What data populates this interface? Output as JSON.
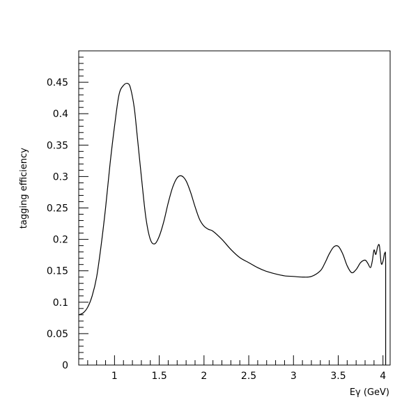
{
  "chart_data": {
    "type": "line",
    "title": "",
    "xlabel": "Eγ (GeV)",
    "ylabel": "tagging efficiency",
    "xlim": [
      0.6,
      4.08
    ],
    "ylim": [
      0,
      0.5
    ],
    "xticks": [
      1,
      1.5,
      2,
      2.5,
      3,
      3.5,
      4
    ],
    "xtick_labels": [
      "1",
      "1.5",
      "2",
      "2.5",
      "3",
      "3.5",
      "4"
    ],
    "yticks": [
      0,
      0.05,
      0.1,
      0.15,
      0.2,
      0.25,
      0.3,
      0.35,
      0.4,
      0.45
    ],
    "ytick_labels": [
      "0",
      "0.05",
      "0.1",
      "0.15",
      "0.2",
      "0.25",
      "0.3",
      "0.35",
      "0.4",
      "0.45"
    ],
    "grid": false,
    "legend": "none",
    "line_color": "#000000",
    "series": [
      {
        "x": [
          0.6,
          0.65,
          0.7,
          0.75,
          0.8,
          0.85,
          0.9,
          0.95,
          1.0,
          1.05,
          1.1,
          1.15,
          1.18,
          1.22,
          1.25,
          1.3,
          1.35,
          1.4,
          1.45,
          1.5,
          1.55,
          1.6,
          1.65,
          1.7,
          1.75,
          1.8,
          1.85,
          1.9,
          1.95,
          2.0,
          2.05,
          2.1,
          2.2,
          2.3,
          2.4,
          2.5,
          2.6,
          2.7,
          2.8,
          2.9,
          3.0,
          3.1,
          3.2,
          3.3,
          3.35,
          3.4,
          3.45,
          3.5,
          3.55,
          3.6,
          3.65,
          3.7,
          3.75,
          3.8,
          3.83,
          3.86,
          3.88,
          3.9,
          3.92,
          3.94,
          3.96,
          3.98,
          4.0,
          4.02,
          4.03,
          4.03
        ],
        "y": [
          0.08,
          0.083,
          0.092,
          0.11,
          0.14,
          0.19,
          0.25,
          0.32,
          0.38,
          0.43,
          0.445,
          0.448,
          0.44,
          0.41,
          0.37,
          0.3,
          0.235,
          0.2,
          0.193,
          0.205,
          0.228,
          0.258,
          0.283,
          0.298,
          0.301,
          0.293,
          0.275,
          0.252,
          0.232,
          0.221,
          0.216,
          0.213,
          0.2,
          0.184,
          0.171,
          0.163,
          0.155,
          0.149,
          0.145,
          0.142,
          0.141,
          0.14,
          0.141,
          0.15,
          0.162,
          0.177,
          0.188,
          0.189,
          0.177,
          0.158,
          0.147,
          0.152,
          0.163,
          0.167,
          0.162,
          0.155,
          0.165,
          0.183,
          0.176,
          0.188,
          0.19,
          0.162,
          0.165,
          0.178,
          0.16,
          0
        ]
      }
    ]
  }
}
